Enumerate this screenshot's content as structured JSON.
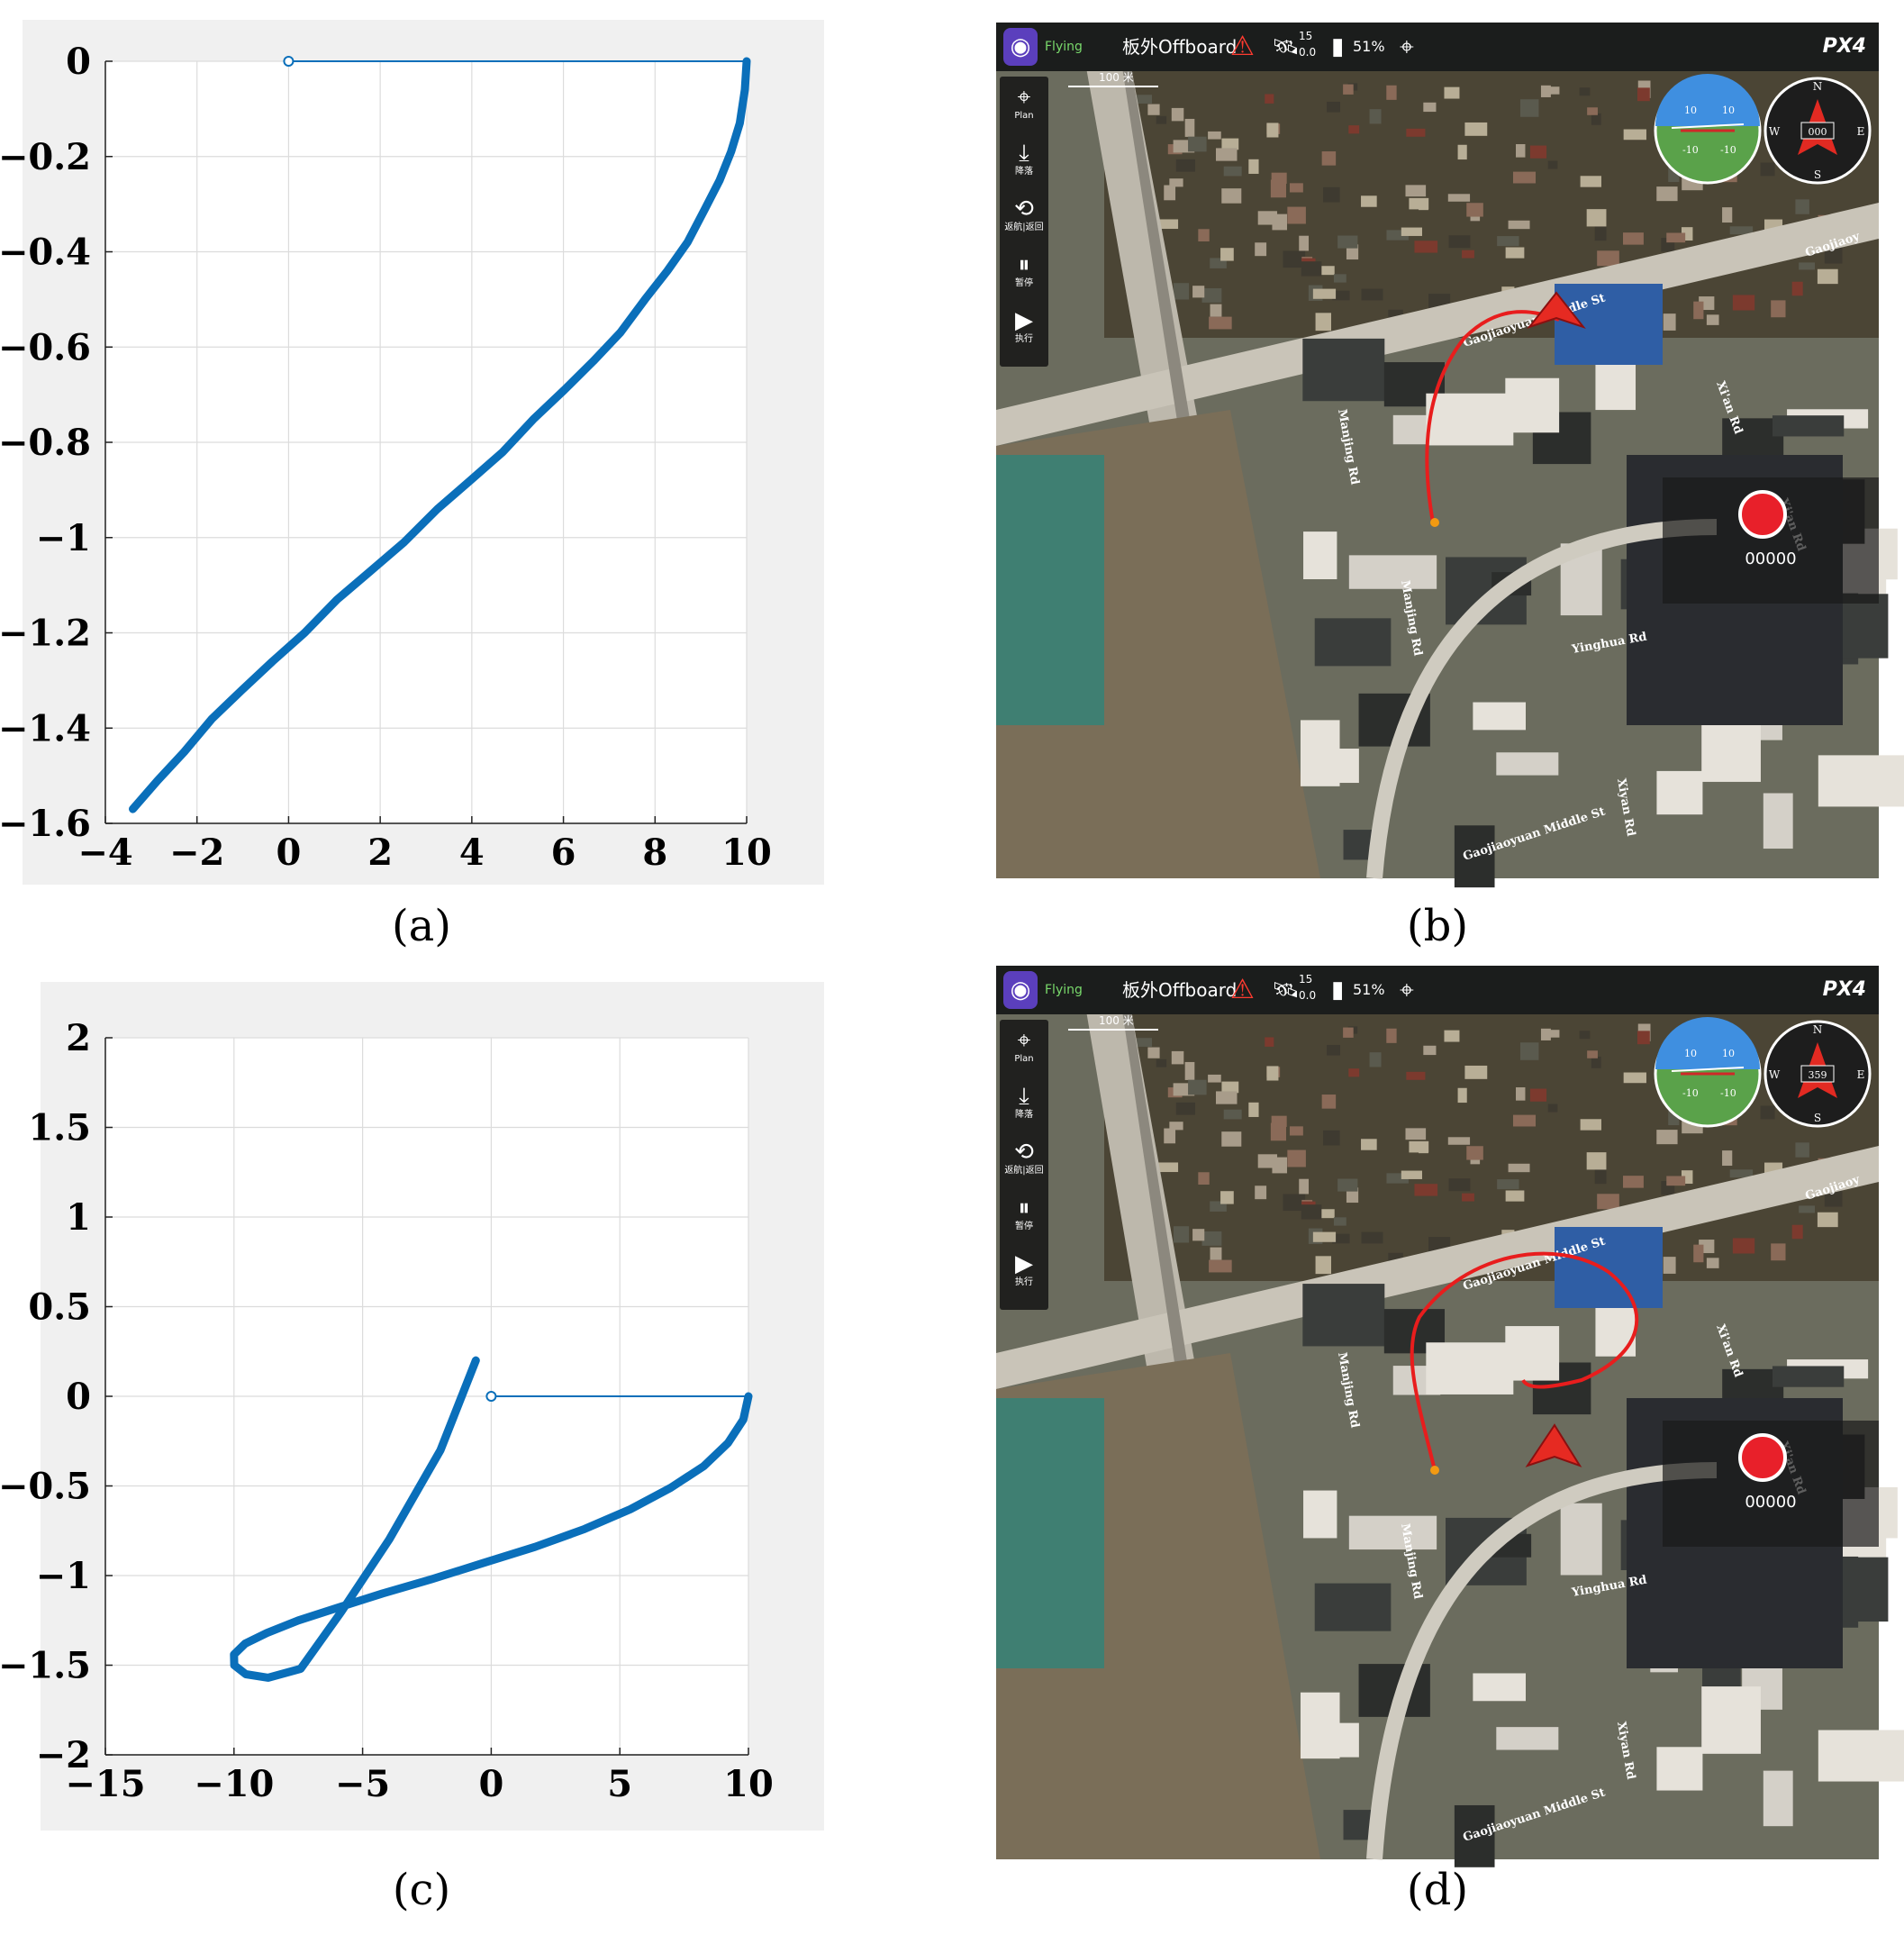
{
  "captions": {
    "a": "(a)",
    "b": "(b)",
    "c": "(c)",
    "d": "(d)"
  },
  "chart_data": [
    {
      "id": "a",
      "type": "line",
      "xlim": [
        -4,
        10
      ],
      "ylim": [
        -1.6,
        0
      ],
      "x_ticks": [
        -4,
        -2,
        0,
        2,
        4,
        6,
        8,
        10
      ],
      "x_tick_labels": [
        "−4",
        "−2",
        "0",
        "2",
        "4",
        "6",
        "8",
        "10"
      ],
      "y_ticks": [
        0,
        -0.2,
        -0.4,
        -0.6,
        -0.8,
        -1,
        -1.2,
        -1.4,
        -1.6
      ],
      "y_tick_labels": [
        "0",
        "−0.2",
        "−0.4",
        "−0.6",
        "−0.8",
        "−1",
        "−1.2",
        "−1.4",
        "−1.6"
      ],
      "grid": true,
      "series": [
        {
          "style": "thin",
          "marker": "origin-circle",
          "x": [
            0,
            10
          ],
          "y": [
            0,
            0
          ]
        },
        {
          "style": "thick",
          "x": [
            10,
            9.96,
            9.85,
            9.66,
            9.41,
            9.09,
            8.71,
            8.27,
            7.78,
            7.24,
            6.65,
            6.02,
            5.36,
            4.68,
            3.97,
            3.25,
            2.52,
            1.79,
            1.06,
            0.35,
            -0.35,
            -1.02,
            -1.67,
            -2.28,
            -2.86,
            -3.4
          ],
          "y": [
            0,
            -0.06,
            -0.13,
            -0.19,
            -0.25,
            -0.31,
            -0.38,
            -0.44,
            -0.5,
            -0.57,
            -0.63,
            -0.69,
            -0.75,
            -0.82,
            -0.88,
            -0.94,
            -1.01,
            -1.07,
            -1.13,
            -1.2,
            -1.26,
            -1.32,
            -1.38,
            -1.45,
            -1.51,
            -1.57
          ],
          "coords": "polar-xy"
        }
      ],
      "color": "#0a6fba"
    },
    {
      "id": "c",
      "type": "line",
      "xlim": [
        -15,
        10
      ],
      "ylim": [
        -2,
        2
      ],
      "x_ticks": [
        -15,
        -10,
        -5,
        0,
        5,
        10
      ],
      "x_tick_labels": [
        "−15",
        "−10",
        "−5",
        "0",
        "5",
        "10"
      ],
      "y_ticks": [
        2,
        1.5,
        1,
        0.5,
        0,
        -0.5,
        -1,
        -1.5,
        -2
      ],
      "y_tick_labels": [
        "2",
        "1.5",
        "1",
        "0.5",
        "0",
        "−0.5",
        "−1",
        "−1.5",
        "−2"
      ],
      "grid": true,
      "series": [
        {
          "style": "thin",
          "marker": "origin-circle",
          "x": [
            0,
            10
          ],
          "y": [
            0,
            0
          ]
        },
        {
          "style": "thick",
          "x": [
            10,
            9.8,
            9.21,
            8.26,
            6.98,
            5.41,
            3.63,
            1.7,
            -0.31,
            -2.31,
            -4.23,
            -5.98,
            -7.5,
            -8.72,
            -9.57,
            -10.0,
            -9.99,
            -9.54,
            -8.67,
            -7.41,
            -5.82,
            -3.97,
            -1.97,
            -0.6
          ],
          "y": [
            0,
            -0.13,
            -0.26,
            -0.39,
            -0.51,
            -0.63,
            -0.74,
            -0.84,
            -0.93,
            -1.02,
            -1.1,
            -1.18,
            -1.25,
            -1.32,
            -1.38,
            -1.44,
            -1.5,
            -1.55,
            -1.57,
            -1.52,
            -1.2,
            -0.8,
            -0.3,
            0.2
          ],
          "coords": "spiral"
        }
      ],
      "color": "#0a6fba"
    }
  ],
  "maps": [
    {
      "id": "b",
      "status": "Flying",
      "mode": "板外Offboard",
      "sat_count": "15",
      "hdop": "0.0",
      "battery": "51%",
      "logo": "PX4",
      "scale_label": "100 米",
      "heading": "000",
      "att_up": "10",
      "att_down": "-10",
      "compass": [
        "N",
        "E",
        "S",
        "W"
      ],
      "tools": [
        {
          "icon": "plan-icon",
          "glyph": "⌖",
          "label": "Plan"
        },
        {
          "icon": "land-icon",
          "glyph": "⤓",
          "label": "降落"
        },
        {
          "icon": "return-icon",
          "glyph": "⟲",
          "label": "返航|返回"
        },
        {
          "icon": "pause-icon",
          "glyph": "⏸",
          "label": "暂停"
        },
        {
          "icon": "play-icon",
          "glyph": "▶",
          "label": "执行"
        }
      ],
      "record_counter": "00000",
      "streets": [
        "Gaojiaoyuan Middle St",
        "Gaojiaoyuan Middle St",
        "Gaojiaoy",
        "Xi'an Rd",
        "Xi'an Rd",
        "Manjing Rd",
        "Manjing Rd",
        "Yinghua Rd",
        "Xiyan Rd"
      ]
    },
    {
      "id": "d",
      "status": "Flying",
      "mode": "板外Offboard",
      "sat_count": "15",
      "hdop": "0.0",
      "battery": "51%",
      "logo": "PX4",
      "scale_label": "100 米",
      "heading": "359",
      "att_up": "10",
      "att_down": "-10",
      "compass": [
        "N",
        "E",
        "S",
        "W"
      ],
      "tools": [
        {
          "icon": "plan-icon",
          "glyph": "⌖",
          "label": "Plan"
        },
        {
          "icon": "land-icon",
          "glyph": "⤓",
          "label": "降落"
        },
        {
          "icon": "return-icon",
          "glyph": "⟲",
          "label": "返航|返回"
        },
        {
          "icon": "pause-icon",
          "glyph": "⏸",
          "label": "暂停"
        },
        {
          "icon": "play-icon",
          "glyph": "▶",
          "label": "执行"
        }
      ],
      "record_counter": "00000",
      "streets": [
        "Gaojiaoyuan Middle St",
        "Gaojiaoyuan Middle St",
        "Gaojiaoy",
        "Xi'an Rd",
        "Xi'an Rd",
        "Manjing Rd",
        "Manjing Rd",
        "Yinghua Rd",
        "Xiyan Rd"
      ]
    }
  ]
}
